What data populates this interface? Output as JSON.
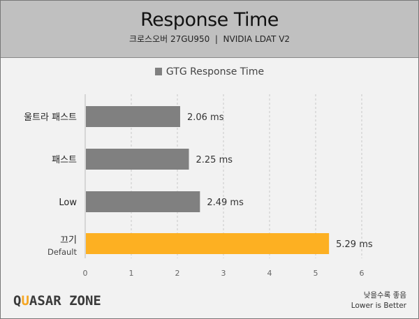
{
  "chart_data": {
    "type": "bar",
    "orientation": "horizontal",
    "title": "Response Time",
    "subtitle": "크로스오버 27GU950  |  NVIDIA LDAT V2",
    "categories": [
      {
        "label": "울트라 패스트",
        "sublabel": ""
      },
      {
        "label": "패스트",
        "sublabel": ""
      },
      {
        "label": "Low",
        "sublabel": ""
      },
      {
        "label": "끄기",
        "sublabel": "Default"
      }
    ],
    "series": [
      {
        "name": "GTG Response Time",
        "values": [
          2.06,
          2.25,
          2.49,
          5.29
        ],
        "color": "#808080"
      }
    ],
    "highlight": {
      "index": 3,
      "color": "#fdb022"
    },
    "data_labels": [
      "2.06 ms",
      "2.25 ms",
      "2.49 ms",
      "5.29 ms"
    ],
    "xlim": [
      0,
      6
    ],
    "xticks": [
      "0",
      "1",
      "2",
      "3",
      "4",
      "5",
      "6"
    ],
    "grid": true,
    "legend": "top-center"
  },
  "footer": {
    "logo": "QUASAR ZONE",
    "note_ko": "낮을수록 좋음",
    "note_en": "Lower is Better"
  }
}
